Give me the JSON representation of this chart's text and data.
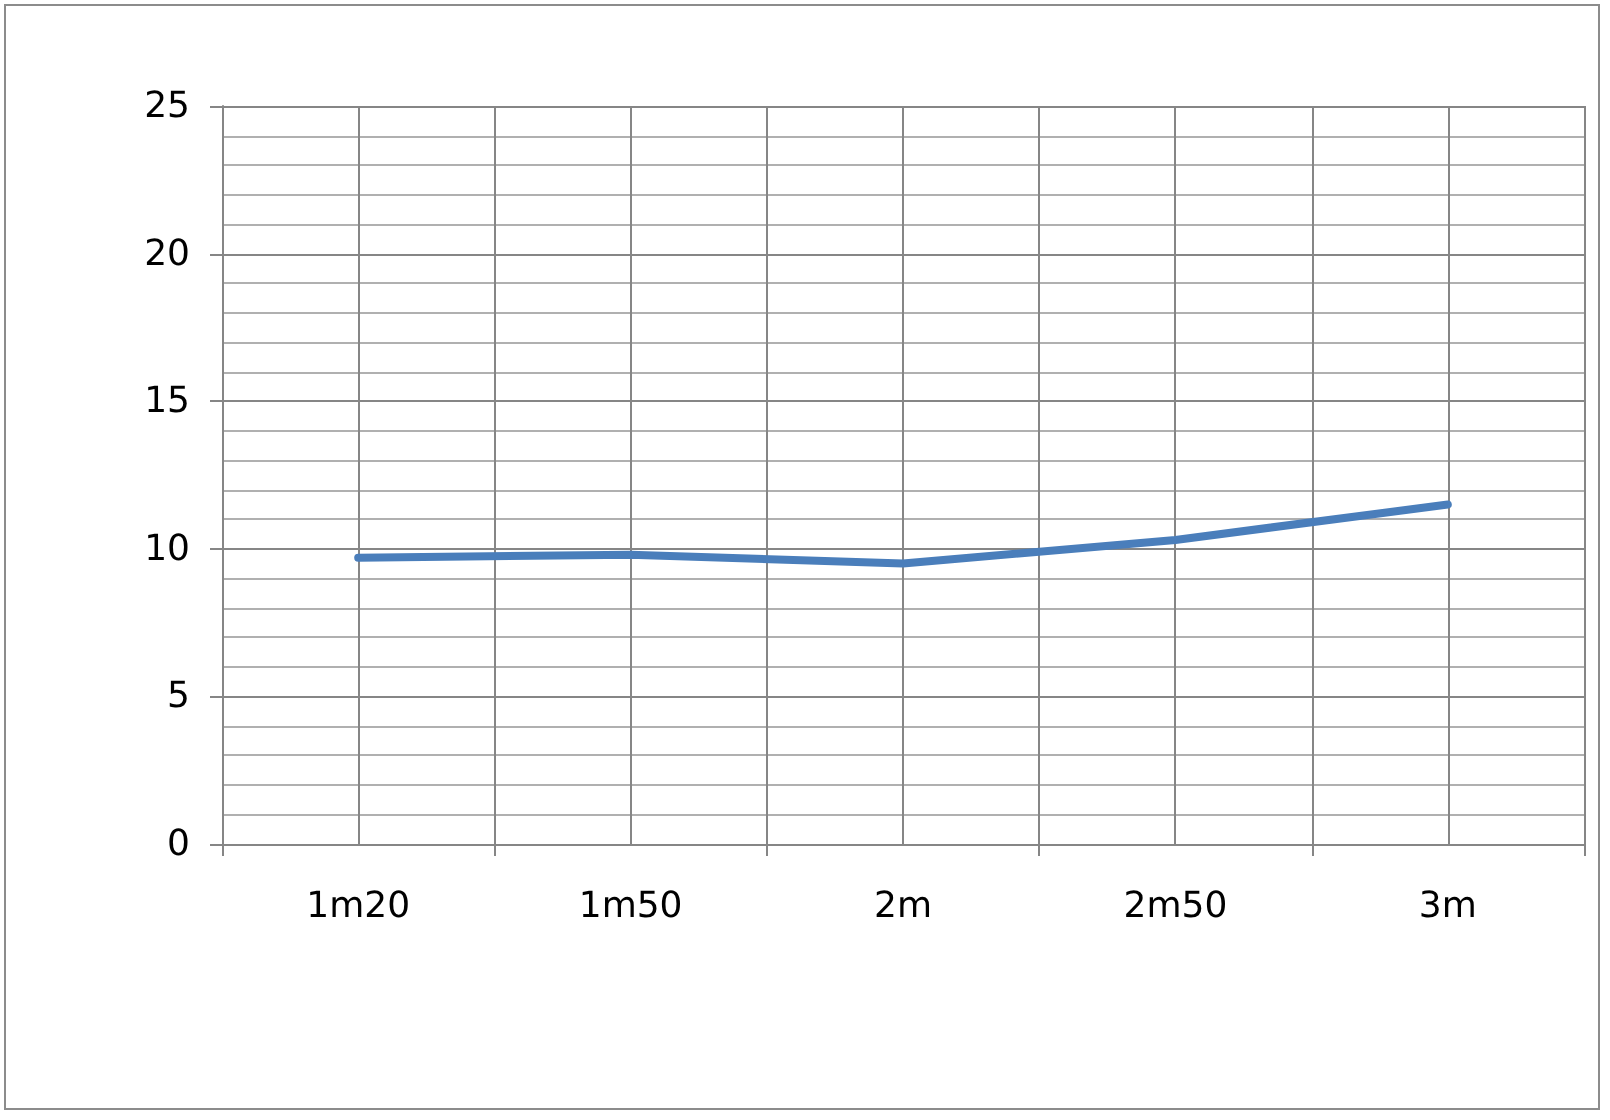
{
  "chart_data": {
    "type": "line",
    "categories": [
      "1m20",
      "1m50",
      "2m",
      "2m50",
      "3m"
    ],
    "series": [
      {
        "color": "#4a7ebb",
        "values": [
          9.7,
          9.8,
          9.5,
          10.3,
          11.5
        ]
      }
    ],
    "ylim": [
      0,
      25
    ],
    "yticks": [
      0,
      5,
      10,
      15,
      20,
      25
    ],
    "grid": true,
    "marker": "none",
    "line_style": "solid"
  }
}
